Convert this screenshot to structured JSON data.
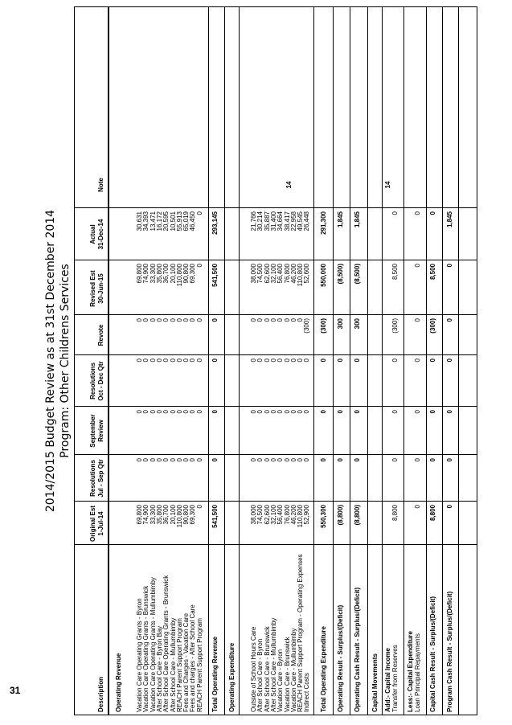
{
  "page_number": "31",
  "title_line1": "2014/2015 Budget Review as at 31st December 2014",
  "title_line2": "Program: Other Childrens Services",
  "headers": {
    "description": "Description",
    "orig1": "Original Est",
    "orig2": "1-Jul-14",
    "res1_1": "Resolutions",
    "res1_2": "Jul - Sep Qtr",
    "sept1": "September",
    "sept2": "Review",
    "res2_1": "Resolutions",
    "res2_2": "Oct - Dec Qtr",
    "revote": "Revote",
    "revised1": "Revised Est",
    "revised2": "30-Jun-15",
    "actual1": "Actual",
    "actual2": "31-Dec-14",
    "note": "Note"
  },
  "sections": {
    "op_rev": "Operating Revenue",
    "op_exp": "Operating Expenditure",
    "cap_mov": "Capital Movements",
    "add_cap": "Add:- Capital Income",
    "less_cap": "Less:- Capital Expenditure"
  },
  "revenue_rows": [
    {
      "desc": "Vacation Care Operating Grants - Byron",
      "orig": "69,800",
      "r1": "0",
      "sep": "0",
      "r2": "0",
      "rev": "0",
      "est": "69,800",
      "act": "30,631"
    },
    {
      "desc": "Vacation Care Operating Grants - Brunswick",
      "orig": "74,900",
      "r1": "0",
      "sep": "0",
      "r2": "0",
      "rev": "0",
      "est": "74,900",
      "act": "34,393"
    },
    {
      "desc": "Vacation Care Operating Grants - Mullumbimby",
      "orig": "33,300",
      "r1": "0",
      "sep": "0",
      "r2": "0",
      "rev": "0",
      "est": "33,300",
      "act": "13,471"
    },
    {
      "desc": "After School Care - Byron Bay",
      "orig": "35,800",
      "r1": "0",
      "sep": "0",
      "r2": "0",
      "rev": "0",
      "est": "35,800",
      "act": "16,172"
    },
    {
      "desc": "After School Care Operating Grants - Brunswick",
      "orig": "36,700",
      "r1": "0",
      "sep": "0",
      "r2": "0",
      "rev": "0",
      "est": "36,700",
      "act": "20,595"
    },
    {
      "desc": "After School Care - Mullumbimby",
      "orig": "20,100",
      "r1": "0",
      "sep": "0",
      "r2": "0",
      "rev": "0",
      "est": "20,100",
      "act": "10,501"
    },
    {
      "desc": "REACH Parent Support Program",
      "orig": "110,800",
      "r1": "0",
      "sep": "0",
      "r2": "0",
      "rev": "0",
      "est": "110,800",
      "act": "55,913"
    },
    {
      "desc": "Fees and Charges - Vacation Care",
      "orig": "90,800",
      "r1": "0",
      "sep": "0",
      "r2": "0",
      "rev": "0",
      "est": "90,800",
      "act": "65,019"
    },
    {
      "desc": "Fees and charges - After School Care",
      "orig": "69,300",
      "r1": "0",
      "sep": "0",
      "r2": "0",
      "rev": "0",
      "est": "69,300",
      "act": "46,450"
    },
    {
      "desc": "REACH Parent Support Program",
      "orig": "0",
      "r1": "0",
      "sep": "0",
      "r2": "0",
      "rev": "0",
      "est": "0",
      "act": "0"
    }
  ],
  "total_revenue": {
    "desc": "Total Operating Revenue",
    "orig": "541,500",
    "r1": "0",
    "sep": "0",
    "r2": "0",
    "rev": "0",
    "est": "541,500",
    "act": "293,145"
  },
  "expense_rows": [
    {
      "desc": "Outside of School Hours Care",
      "orig": "38,000",
      "r1": "0",
      "sep": "0",
      "r2": "0",
      "rev": "0",
      "est": "38,000",
      "act": "21,766"
    },
    {
      "desc": "After School Care - Byron",
      "orig": "74,500",
      "r1": "0",
      "sep": "0",
      "r2": "0",
      "rev": "0",
      "est": "74,500",
      "act": "30,214"
    },
    {
      "desc": "After School Care - Brunswick",
      "orig": "62,600",
      "r1": "0",
      "sep": "0",
      "r2": "0",
      "rev": "0",
      "est": "62,600",
      "act": "35,887"
    },
    {
      "desc": "After School Care - Mullumbimby",
      "orig": "32,100",
      "r1": "0",
      "sep": "0",
      "r2": "0",
      "rev": "0",
      "est": "32,100",
      "act": "31,400"
    },
    {
      "desc": "Vacation Care - Byron",
      "orig": "56,400",
      "r1": "0",
      "sep": "0",
      "r2": "0",
      "rev": "0",
      "est": "56,400",
      "act": "34,664"
    },
    {
      "desc": "Vacation Care - Brunswick",
      "orig": "76,800",
      "r1": "0",
      "sep": "0",
      "r2": "0",
      "rev": "0",
      "est": "76,800",
      "act": "38,417"
    },
    {
      "desc": "Vacation Care - Mullumbimby",
      "orig": "46,200",
      "r1": "0",
      "sep": "0",
      "r2": "0",
      "rev": "0",
      "est": "46,200",
      "act": "22,958"
    },
    {
      "desc": "REACH Parent Support Program - Operating Expenses",
      "orig": "110,800",
      "r1": "0",
      "sep": "0",
      "r2": "0",
      "rev": "0",
      "est": "110,800",
      "act": "49,545"
    },
    {
      "desc": "Indirect Costs",
      "orig": "52,900",
      "r1": "0",
      "sep": "0",
      "r2": "0",
      "rev": "(300)",
      "est": "52,600",
      "act": "26,448"
    }
  ],
  "expense_note": "14",
  "total_expense": {
    "desc": "Total Operating Expenditure",
    "orig": "550,300",
    "r1": "0",
    "sep": "0",
    "r2": "0",
    "rev": "(300)",
    "est": "550,000",
    "act": "291,300"
  },
  "op_result": {
    "desc": "Operating Result - Surplus/(Deficit)",
    "orig": "(8,800)",
    "r1": "0",
    "sep": "0",
    "r2": "0",
    "rev": "300",
    "est": "(8,500)",
    "act": "1,845"
  },
  "op_cash": {
    "desc": "Operating Cash Result - Surplus/(Deficit)",
    "orig": "(8,800)",
    "r1": "0",
    "sep": "0",
    "r2": "0",
    "rev": "300",
    "est": "(8,500)",
    "act": "1,845"
  },
  "transfer": {
    "desc": "Transfer from Reserves",
    "orig": "8,800",
    "r1": "0",
    "sep": "0",
    "r2": "0",
    "rev": "(300)",
    "est": "8,500",
    "act": "0",
    "note": "14"
  },
  "loan": {
    "desc": "Loan Principal Repayments",
    "orig": "0",
    "r1": "0",
    "sep": "0",
    "r2": "0",
    "rev": "0",
    "est": "0",
    "act": "0"
  },
  "cap_cash": {
    "desc": "Capital Cash Result - Surplus/(Deficit)",
    "orig": "8,800",
    "r1": "0",
    "sep": "0",
    "r2": "0",
    "rev": "(300)",
    "est": "8,500",
    "act": "0"
  },
  "prog_cash": {
    "desc": "Program Cash Result - Surplus/(Deficit)",
    "orig": "0",
    "r1": "0",
    "sep": "0",
    "r2": "0",
    "rev": "0",
    "est": "0",
    "act": "1,845"
  }
}
